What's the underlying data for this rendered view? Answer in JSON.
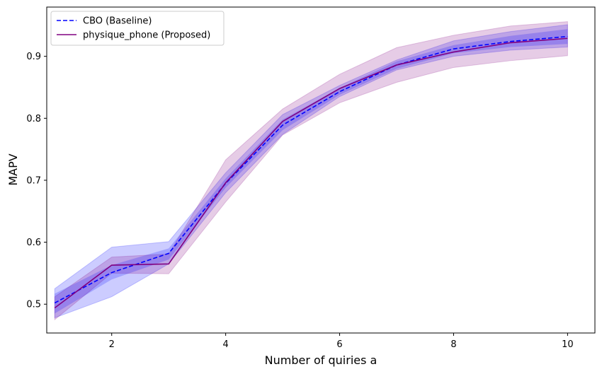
{
  "chart_data": {
    "type": "line",
    "title": "",
    "xlabel": "Number of quiries a",
    "ylabel": "MAPV",
    "x": [
      1,
      2,
      3,
      4,
      5,
      6,
      7,
      8,
      9,
      10
    ],
    "xlim": [
      0.86,
      10.48
    ],
    "ylim": [
      0.4535,
      0.9795
    ],
    "xticks": [
      2,
      4,
      6,
      8,
      10
    ],
    "yticks": [
      0.5,
      0.6,
      0.7,
      0.8,
      0.9
    ],
    "xtick_labels": [
      "2",
      "4",
      "6",
      "8",
      "10"
    ],
    "ytick_labels": [
      "0.5",
      "0.6",
      "0.7",
      "0.8",
      "0.9"
    ],
    "legend_position": "top-left",
    "series": [
      {
        "name": "CBO (Baseline)",
        "color": "#0000ff",
        "style": "dashed",
        "values": [
          0.502,
          0.551,
          0.582,
          0.695,
          0.789,
          0.843,
          0.886,
          0.912,
          0.924,
          0.932
        ],
        "band_outer": {
          "lower": [
            0.478,
            0.512,
            0.565,
            0.68,
            0.774,
            0.835,
            0.878,
            0.9,
            0.91,
            0.915
          ],
          "upper": [
            0.525,
            0.592,
            0.601,
            0.712,
            0.806,
            0.853,
            0.894,
            0.925,
            0.94,
            0.951
          ]
        },
        "band_inner": {
          "lower": [
            0.485,
            0.54,
            0.572,
            0.688,
            0.781,
            0.838,
            0.88,
            0.905,
            0.915,
            0.92
          ],
          "upper": [
            0.517,
            0.563,
            0.59,
            0.703,
            0.798,
            0.849,
            0.892,
            0.918,
            0.933,
            0.944
          ]
        },
        "band_color": "#0000ff"
      },
      {
        "name": "physique_phone (Proposed)",
        "color": "#800080",
        "style": "solid",
        "values": [
          0.494,
          0.563,
          0.565,
          0.696,
          0.795,
          0.848,
          0.886,
          0.907,
          0.922,
          0.929
        ],
        "band": {
          "lower": [
            0.475,
            0.55,
            0.549,
            0.665,
            0.773,
            0.825,
            0.858,
            0.882,
            0.893,
            0.901
          ],
          "upper": [
            0.512,
            0.576,
            0.581,
            0.733,
            0.815,
            0.871,
            0.914,
            0.934,
            0.949,
            0.956
          ]
        },
        "band_color": "#800080"
      }
    ]
  }
}
